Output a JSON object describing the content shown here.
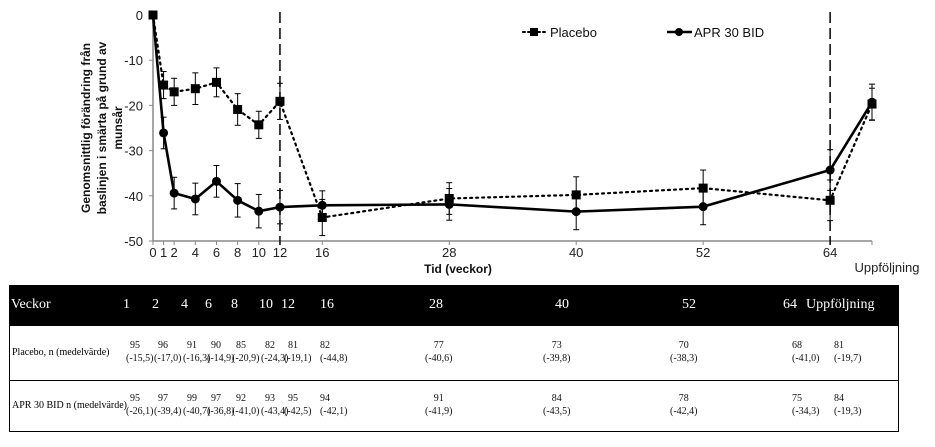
{
  "chart_data": {
    "type": "line",
    "title": "",
    "xlabel": "Tid (veckor)",
    "ylabel": "Genomsnittlig förändring från baslinjen i smärta på grund av munsår",
    "ylim": [
      -50,
      0
    ],
    "yticks": [
      0,
      -10,
      -20,
      -30,
      -40,
      -50
    ],
    "xticks": [
      "0",
      "1",
      "2",
      "4",
      "6",
      "8",
      "10",
      "12",
      "16",
      "28",
      "40",
      "52",
      "64",
      "Uppföljning"
    ],
    "x": [
      0,
      1,
      2,
      4,
      6,
      8,
      10,
      12,
      16,
      28,
      40,
      52,
      64,
      "Uppföljning"
    ],
    "vertical_dashed_lines_at_week": [
      12,
      64
    ],
    "legend_position": "top-right",
    "grid": false,
    "series": [
      {
        "name": "Placebo",
        "style": "dotted",
        "marker": "square",
        "values": [
          0,
          -15.5,
          -17.0,
          -16.3,
          -14.9,
          -20.9,
          -24.3,
          -19.1,
          -44.8,
          -40.6,
          -39.8,
          -38.3,
          -41.0,
          -19.7
        ],
        "error": [
          0,
          3,
          3,
          3.5,
          3.2,
          3.5,
          3,
          4,
          4,
          3.5,
          4,
          4,
          4.5,
          3.5
        ]
      },
      {
        "name": "APR 30 BID",
        "style": "solid",
        "marker": "circle",
        "values": [
          0,
          -26.1,
          -39.4,
          -40.7,
          -36.8,
          -41.0,
          -43.4,
          -42.5,
          -42.1,
          -41.9,
          -43.5,
          -42.4,
          -34.3,
          -19.3
        ],
        "error": [
          0,
          3.5,
          3.5,
          3.5,
          3.5,
          3.7,
          3.7,
          3.7,
          3.2,
          3.5,
          4,
          4,
          4.5,
          4
        ]
      }
    ]
  },
  "table": {
    "header_label": "Veckor",
    "columns": [
      "1",
      "2",
      "4",
      "6",
      "8",
      "10",
      "12",
      "16",
      "28",
      "40",
      "52",
      "64",
      "Uppföljning"
    ],
    "rows": [
      {
        "label": "Placebo, n (medelvärde)",
        "n": [
          "95",
          "96",
          "91",
          "90",
          "85",
          "82",
          "81",
          "82",
          "77",
          "73",
          "70",
          "68",
          "81"
        ],
        "mean": [
          "(-15,5)",
          "(-17,0)",
          "(-16,3)",
          "(-14,9)",
          "(-20,9)",
          "(-24,3)",
          "(-19,1)",
          "(-44,8)",
          "(-40,6)",
          "(-39,8)",
          "(-38,3)",
          "(-41,0)",
          "(-19,7)"
        ]
      },
      {
        "label": "APR 30 BID n (medelvärde)",
        "n": [
          "95",
          "97",
          "99",
          "97",
          "92",
          "93",
          "95",
          "94",
          "91",
          "84",
          "78",
          "75",
          "84"
        ],
        "mean": [
          "(-26,1)",
          "(-39,4)",
          "(-40,7)",
          "(-36,8)",
          "(-41,0)",
          "(-43,4)",
          "(-42,5)",
          "(-42,1)",
          "(-41,9)",
          "(-43,5)",
          "(-42,4)",
          "(-34,3)",
          "(-19,3)"
        ]
      }
    ]
  }
}
